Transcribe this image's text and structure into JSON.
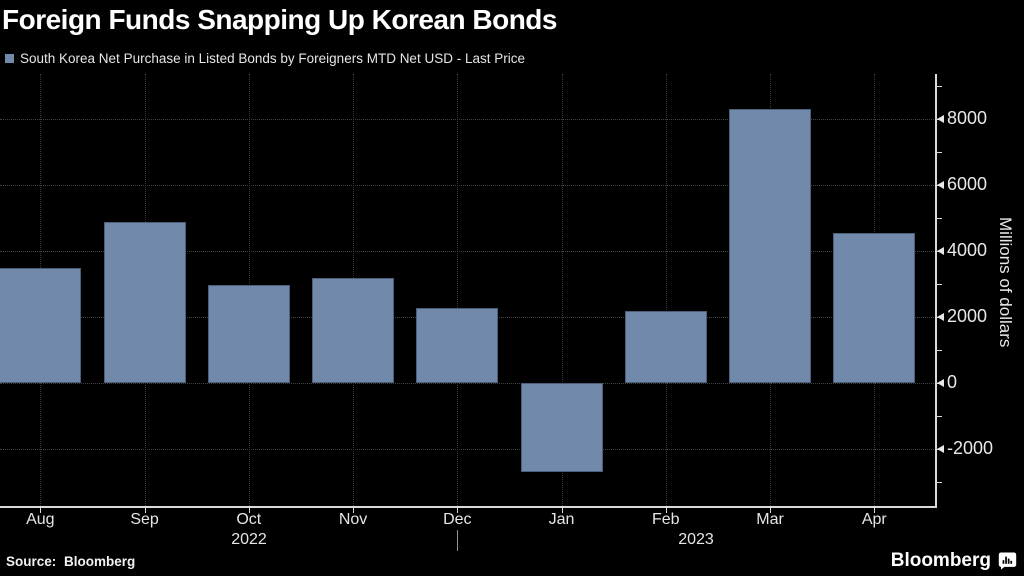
{
  "title": "Foreign Funds Snapping Up Korean Bonds",
  "legend": {
    "label": "South Korea Net Purchase in Listed Bonds by Foreigners MTD Net USD - Last Price",
    "swatch_color": "#7189aa"
  },
  "source": "Source: Bloomberg",
  "brand": {
    "name": "Bloomberg"
  },
  "chart_data": {
    "type": "bar",
    "categories": [
      "Aug",
      "Sep",
      "Oct",
      "Nov",
      "Dec",
      "Jan",
      "Feb",
      "Mar",
      "Apr"
    ],
    "values": [
      3500,
      4880,
      2960,
      3180,
      2260,
      -2700,
      2190,
      8300,
      4560
    ],
    "title": "Foreign Funds Snapping Up Korean Bonds",
    "xlabel": "",
    "ylabel": "Millions of dollars",
    "year_labels": [
      {
        "text": "2022",
        "x": 249
      },
      {
        "text": "2023",
        "x": 696
      }
    ],
    "yticks_labeled": [
      -2000,
      0,
      2000,
      4000,
      6000,
      8000
    ],
    "ytick_minor_step": 1000,
    "ytick_minor_range": [
      -3000,
      9000
    ],
    "ylim": [
      -3800,
      9350
    ],
    "grid": true,
    "legend_position": "top-left",
    "bar_color": "#7189aa",
    "background_color": "#000000",
    "axis_color": "#d9d9d9",
    "grid_color": "#3f3f3f"
  }
}
